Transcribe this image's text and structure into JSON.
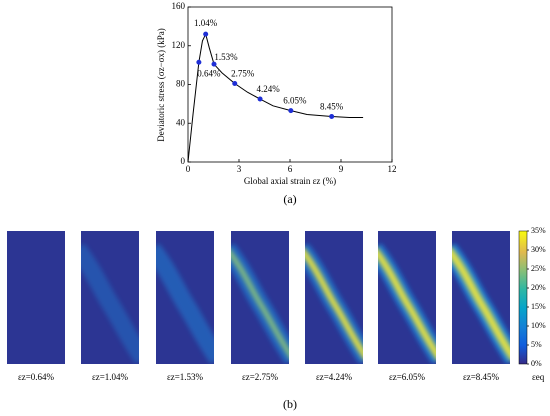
{
  "chart_data": {
    "type": "line",
    "panel_label": "(a)",
    "xlabel": "Global axial strain εz (%)",
    "ylabel": "Deviatoric stress (σz−σx) (kPa)",
    "x": [
      0,
      0.3,
      0.64,
      0.85,
      1.04,
      1.25,
      1.53,
      2,
      2.75,
      3.5,
      4.24,
      5,
      6.05,
      7,
      8.45,
      9.5,
      10.3
    ],
    "values": [
      0,
      50,
      103,
      125,
      132,
      118,
      101,
      92,
      81,
      72,
      65,
      58,
      53,
      49,
      47,
      46,
      46
    ],
    "color": "#000000",
    "points": {
      "x": [
        0.64,
        1.04,
        1.53,
        2.75,
        4.24,
        6.05,
        8.45
      ],
      "values": [
        103,
        132,
        101,
        81,
        65,
        53,
        47
      ],
      "value_labels": [
        "0.64%",
        "1.04%",
        "1.53%",
        "2.75%",
        "4.24%",
        "6.05%",
        "8.45%"
      ],
      "color": "#1f2fd6"
    },
    "xlim": [
      0,
      12
    ],
    "xticks": [
      0,
      3,
      6,
      9,
      12
    ],
    "ylim": [
      0,
      160
    ],
    "yticks": [
      0,
      40,
      80,
      120,
      160
    ]
  },
  "strain_fields": {
    "panel_label": "(b)",
    "captions": [
      "εz=0.64%",
      "εz=1.04%",
      "εz=1.53%",
      "εz=2.75%",
      "εz=4.24%",
      "εz=6.05%",
      "εz=8.45%"
    ],
    "colorbar": {
      "label": "εeq",
      "lim": [
        0,
        35
      ],
      "ticks": [
        {
          "value": 0,
          "label": "0%"
        },
        {
          "value": 5,
          "label": "5%"
        },
        {
          "value": 10,
          "label": "10%"
        },
        {
          "value": 15,
          "label": "15%"
        },
        {
          "value": 20,
          "label": "20%"
        },
        {
          "value": 25,
          "label": "25%"
        },
        {
          "value": 30,
          "label": "30%"
        },
        {
          "value": 35,
          "label": "35%"
        }
      ]
    }
  }
}
